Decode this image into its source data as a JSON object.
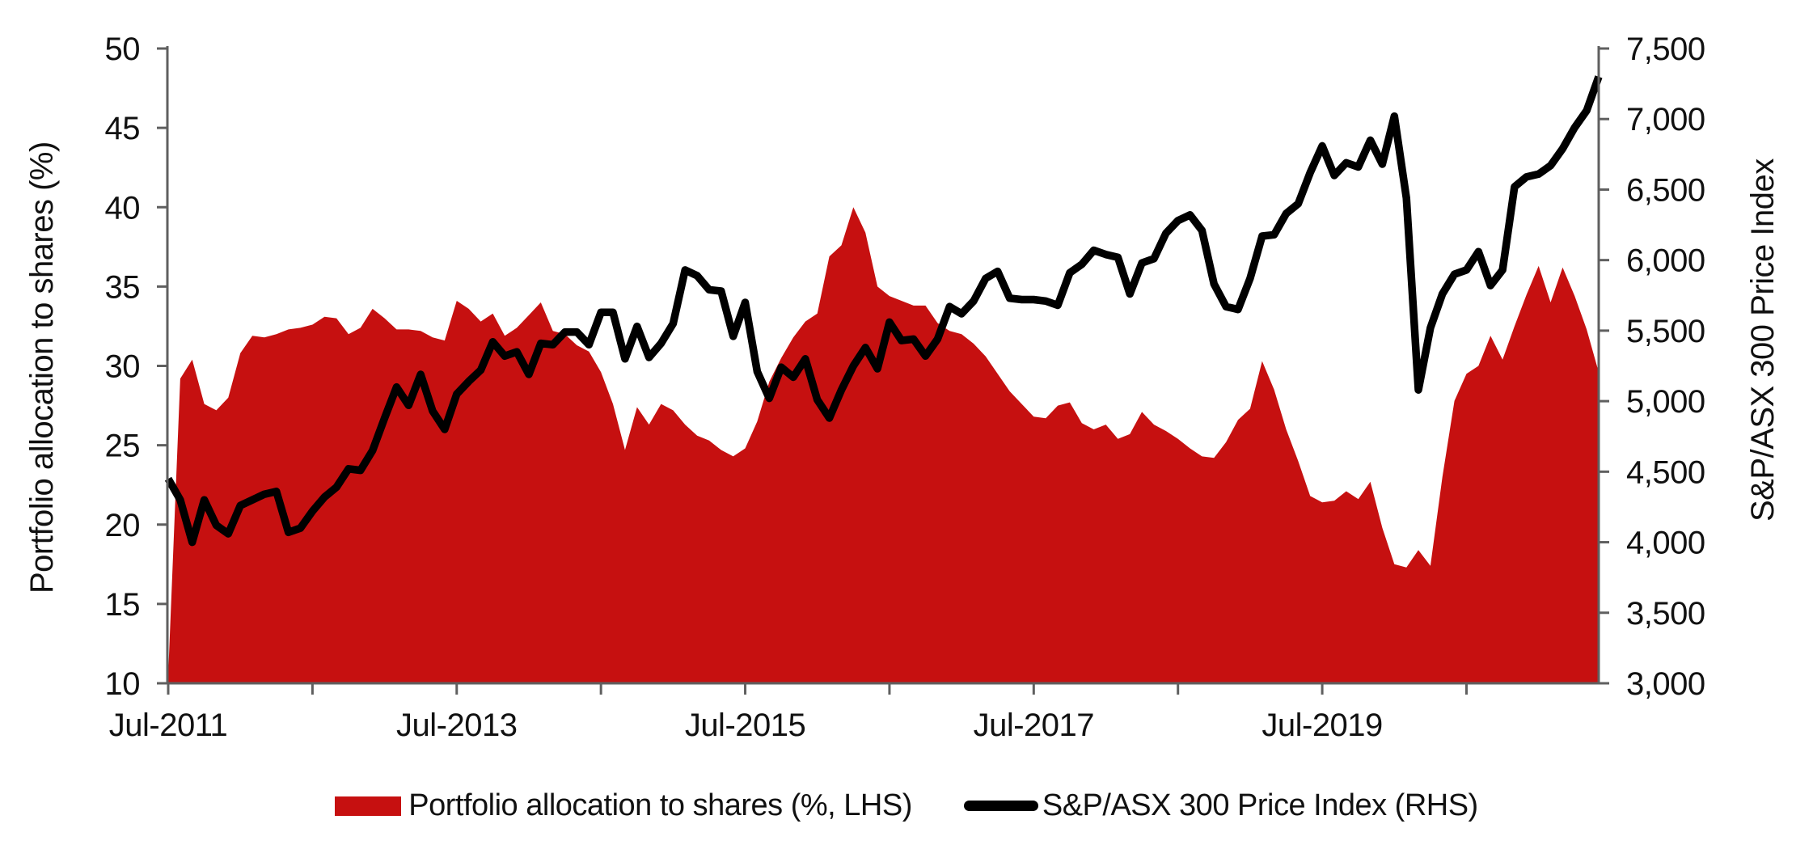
{
  "figure": {
    "colors": {
      "axis": "#5f5f5f",
      "text": "#111111",
      "background": "#ffffff"
    },
    "left_axis": {
      "title": "Portfolio allocation to shares (%)",
      "tick_values": [
        50,
        45,
        40,
        35,
        30,
        25,
        20,
        15,
        10
      ],
      "tick_labels": [
        "50",
        "45",
        "40",
        "35",
        "30",
        "25",
        "20",
        "15",
        "10"
      ]
    },
    "right_axis": {
      "title": "S&P/ASX 300 Price Index",
      "tick_values": [
        7500,
        7000,
        6500,
        6000,
        5500,
        5000,
        4500,
        4000,
        3500,
        3000
      ],
      "tick_labels": [
        "7,500",
        "7,000",
        "6,500",
        "6,000",
        "5,500",
        "5,000",
        "4,500",
        "4,000",
        "3,500",
        "3,000"
      ]
    },
    "x_axis": {
      "tick_month_indices": [
        0,
        12,
        24,
        36,
        48,
        60,
        72,
        84,
        96,
        108
      ],
      "labels": [
        "Jul-2011",
        "Jul-2013",
        "Jul-2015",
        "Jul-2017",
        "Jul-2019"
      ],
      "label_month_indices": [
        0,
        24,
        48,
        72,
        96
      ]
    },
    "legend": [
      {
        "label": "Portfolio allocation to shares (%, LHS)",
        "swatch": "area",
        "color": "#c61010"
      },
      {
        "label": "S&P/ASX 300 Price Index (RHS)",
        "swatch": "line",
        "color": "#000000"
      }
    ]
  },
  "chart_data": {
    "type": "area",
    "combo": "area (left axis) + line (right axis)",
    "x_start": "Jul-2011",
    "x_end": "Jun-2021",
    "frequency": "monthly",
    "grid": "off",
    "legend_position": "bottom-center",
    "left_ylim": [
      10,
      50
    ],
    "right_ylim": [
      3000,
      7500
    ],
    "series": [
      {
        "name": "Portfolio allocation to shares (%, LHS)",
        "type": "area",
        "axis": "left",
        "color": "#c61010",
        "values": [
          10.5,
          29.2,
          30.4,
          27.6,
          27.2,
          28.0,
          30.8,
          31.9,
          31.8,
          32.0,
          32.3,
          32.4,
          32.6,
          33.1,
          33.0,
          32.0,
          32.4,
          33.6,
          33.0,
          32.3,
          32.3,
          32.2,
          31.8,
          31.6,
          34.1,
          33.6,
          32.8,
          33.3,
          31.9,
          32.4,
          33.2,
          34.0,
          32.2,
          32.0,
          31.3,
          30.9,
          29.6,
          27.6,
          24.7,
          27.4,
          26.3,
          27.6,
          27.2,
          26.3,
          25.6,
          25.3,
          24.7,
          24.3,
          24.8,
          26.5,
          29.0,
          30.5,
          31.8,
          32.8,
          33.3,
          36.9,
          37.6,
          40.0,
          38.4,
          35.0,
          34.4,
          34.1,
          33.8,
          33.8,
          32.7,
          32.2,
          32.0,
          31.4,
          30.6,
          29.5,
          28.4,
          27.6,
          26.8,
          26.7,
          27.5,
          27.7,
          26.4,
          26.0,
          26.3,
          25.4,
          25.7,
          27.1,
          26.3,
          25.9,
          25.4,
          24.8,
          24.3,
          24.2,
          25.2,
          26.6,
          27.3,
          30.3,
          28.5,
          26.0,
          24.0,
          21.8,
          21.4,
          21.5,
          22.1,
          21.6,
          22.7,
          19.8,
          17.5,
          17.3,
          18.4,
          17.4,
          23.0,
          27.8,
          29.5,
          30.0,
          31.9,
          30.4,
          32.5,
          34.5,
          36.3,
          34.0,
          36.2,
          34.4,
          32.3,
          29.6
        ]
      },
      {
        "name": "S&P/ASX 300 Price Index (RHS)",
        "type": "line",
        "axis": "right",
        "color": "#000000",
        "values": [
          4450,
          4300,
          4000,
          4300,
          4120,
          4060,
          4260,
          4300,
          4340,
          4360,
          4070,
          4100,
          4220,
          4320,
          4390,
          4520,
          4510,
          4650,
          4880,
          5100,
          4970,
          5190,
          4930,
          4800,
          5050,
          5140,
          5220,
          5420,
          5320,
          5350,
          5190,
          5410,
          5400,
          5490,
          5490,
          5400,
          5630,
          5630,
          5300,
          5530,
          5310,
          5410,
          5550,
          5930,
          5890,
          5790,
          5780,
          5460,
          5700,
          5210,
          5020,
          5240,
          5170,
          5300,
          5010,
          4880,
          5080,
          5250,
          5380,
          5230,
          5560,
          5430,
          5440,
          5320,
          5440,
          5670,
          5620,
          5710,
          5870,
          5920,
          5730,
          5720,
          5720,
          5710,
          5680,
          5910,
          5970,
          6070,
          6040,
          6020,
          5760,
          5980,
          6010,
          6190,
          6280,
          6320,
          6210,
          5830,
          5670,
          5650,
          5870,
          6170,
          6180,
          6330,
          6400,
          6620,
          6810,
          6600,
          6690,
          6660,
          6850,
          6680,
          7020,
          6440,
          5080,
          5520,
          5760,
          5900,
          5930,
          6060,
          5820,
          5930,
          6520,
          6590,
          6610,
          6670,
          6790,
          6940,
          7060,
          7300
        ]
      }
    ]
  }
}
